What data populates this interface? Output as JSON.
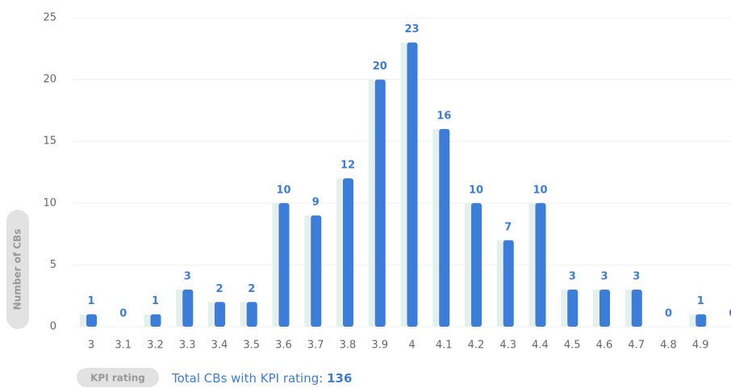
{
  "chart_data": {
    "type": "bar",
    "ylabel": "Number of CBs",
    "xlabel": "KPI rating",
    "total": {
      "label": "Total CBs with KPI rating:",
      "value": 136
    },
    "categories": [
      "3",
      "3.1",
      "3.2",
      "3.3",
      "3.4",
      "3.5",
      "3.6",
      "3.7",
      "3.8",
      "3.9",
      "4",
      "4.1",
      "4.2",
      "4.3",
      "4.4",
      "4.5",
      "4.6",
      "4.7",
      "4.8",
      "4.9",
      null
    ],
    "values": [
      1,
      0,
      1,
      3,
      2,
      2,
      10,
      9,
      12,
      20,
      23,
      16,
      10,
      7,
      10,
      3,
      3,
      3,
      0,
      1,
      0
    ],
    "color": "#3b7dd8",
    "shadow_color": "#e4f0ec",
    "ylim": [
      0,
      25
    ],
    "yticks": [
      0,
      5,
      10,
      15,
      20,
      25
    ],
    "grid": true
  }
}
